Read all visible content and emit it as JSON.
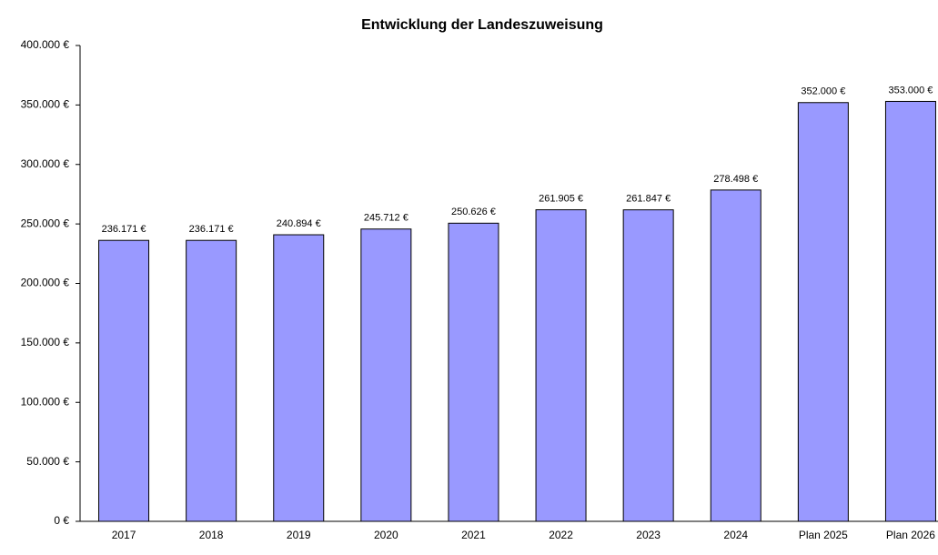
{
  "chart_data": {
    "type": "bar",
    "title": "Entwicklung der Landeszuweisung",
    "categories": [
      "2017",
      "2018",
      "2019",
      "2020",
      "2021",
      "2022",
      "2023",
      "2024",
      "Plan 2025",
      "Plan 2026"
    ],
    "values": [
      236171,
      236171,
      240894,
      245712,
      250626,
      261905,
      261847,
      278498,
      352000,
      353000
    ],
    "value_labels": [
      "236.171 €",
      "236.171 €",
      "240.894 €",
      "245.712 €",
      "250.626 €",
      "261.905 €",
      "261.847 €",
      "278.498 €",
      "352.000 €",
      "353.000 €"
    ],
    "color": "#9999ff",
    "ylim": [
      0,
      400000
    ],
    "yticks": [
      {
        "value": 0,
        "label": "0 €"
      },
      {
        "value": 50000,
        "label": "50.000 €"
      },
      {
        "value": 100000,
        "label": "100.000 €"
      },
      {
        "value": 150000,
        "label": "150.000 €"
      },
      {
        "value": 200000,
        "label": "200.000 €"
      },
      {
        "value": 250000,
        "label": "250.000 €"
      },
      {
        "value": 300000,
        "label": "300.000 €"
      },
      {
        "value": 350000,
        "label": "350.000 €"
      },
      {
        "value": 400000,
        "label": "400.000 €"
      }
    ],
    "grid": false
  }
}
